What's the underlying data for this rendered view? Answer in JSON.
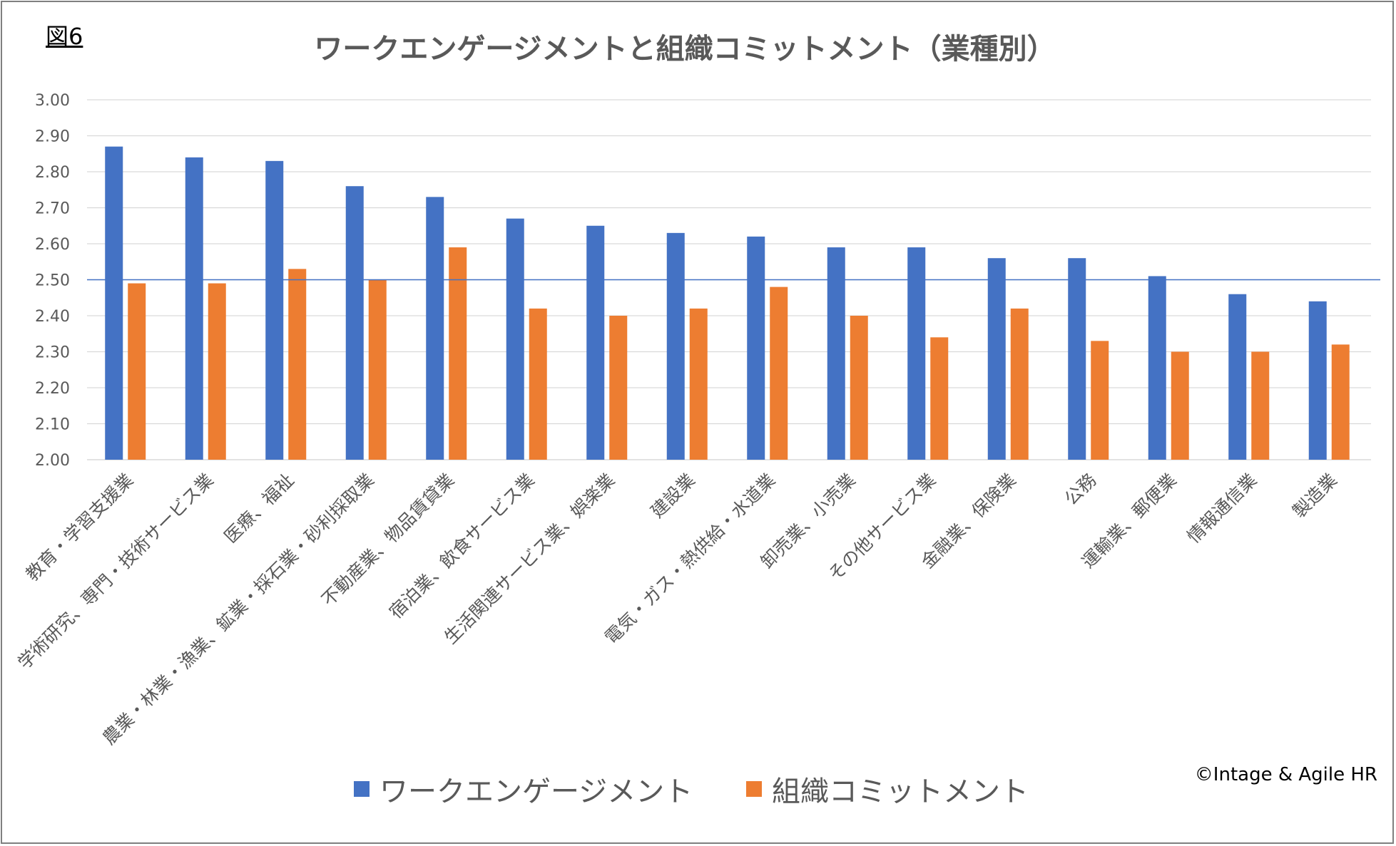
{
  "figure_label": "図6",
  "copyright": "©Intage & Agile HR",
  "colors": {
    "engagement": "#4472C4",
    "commitment": "#ED7D31",
    "grid": "#D9D9D9",
    "reference_line": "#4472C4",
    "axis_text": "#595959"
  },
  "chart_data": {
    "type": "bar",
    "title": "ワークエンゲージメントと組織コミットメント（業種別）",
    "xlabel": "",
    "ylabel": "",
    "ylim": [
      2.0,
      3.0
    ],
    "yticks": [
      "2.00",
      "2.10",
      "2.20",
      "2.30",
      "2.40",
      "2.50",
      "2.60",
      "2.70",
      "2.80",
      "2.90",
      "3.00"
    ],
    "reference_line": 2.5,
    "grid": true,
    "legend_position": "bottom",
    "categories": [
      "教育・学習支援業",
      "学術研究、専門・技術サービス業",
      "医療、福祉",
      "農業・林業・漁業、鉱業・採石業・砂利採取業",
      "不動産業、物品賃貸業",
      "宿泊業、飲食サービス業",
      "生活関連サービス業、娯楽業",
      "建設業",
      "電気・ガス・熱供給・水道業",
      "卸売業、小売業",
      "その他サービス業",
      "金融業、保険業",
      "公務",
      "運輸業、郵便業",
      "情報通信業",
      "製造業"
    ],
    "series": [
      {
        "name": "ワークエンゲージメント",
        "values": [
          2.87,
          2.84,
          2.83,
          2.76,
          2.73,
          2.67,
          2.65,
          2.63,
          2.62,
          2.59,
          2.59,
          2.56,
          2.56,
          2.51,
          2.46,
          2.44
        ]
      },
      {
        "name": "組織コミットメント",
        "values": [
          2.49,
          2.49,
          2.53,
          2.5,
          2.59,
          2.42,
          2.4,
          2.42,
          2.48,
          2.4,
          2.34,
          2.42,
          2.33,
          2.3,
          2.3,
          2.32
        ]
      }
    ]
  }
}
